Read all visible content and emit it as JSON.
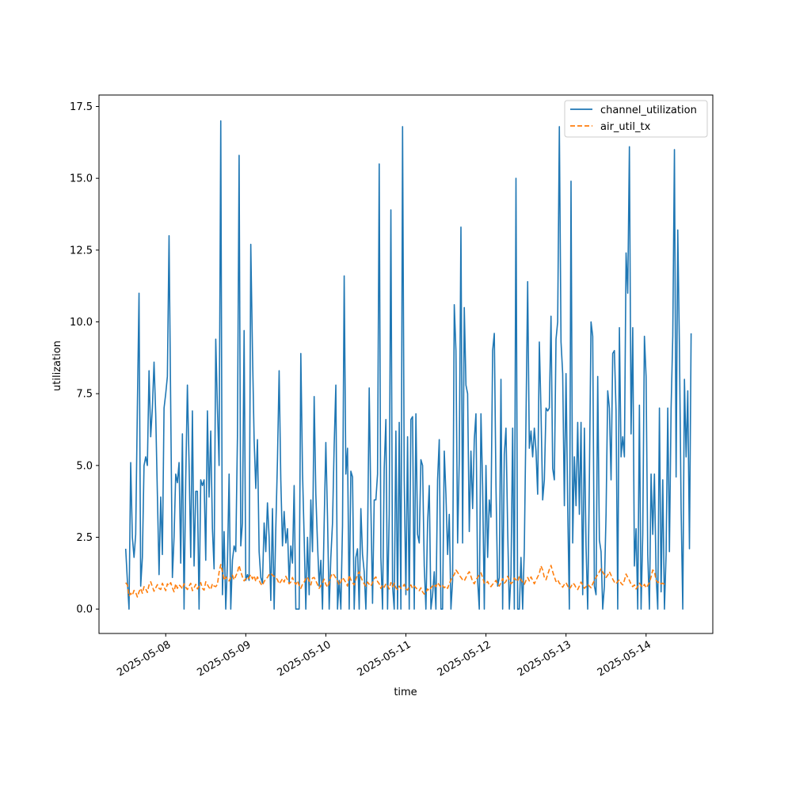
{
  "chart_data": {
    "type": "line",
    "title": "",
    "xlabel": "time",
    "ylabel": "utilization",
    "x_range": [
      "2025-05-07 12:00",
      "2025-05-14 12:00"
    ],
    "sample_interval_minutes": 30,
    "xlim": [
      "2025-05-07 04:00",
      "2025-05-14 20:00"
    ],
    "ylim": [
      -0.85,
      17.9
    ],
    "x_ticks": [
      "2025-05-08",
      "2025-05-09",
      "2025-05-10",
      "2025-05-11",
      "2025-05-12",
      "2025-05-13",
      "2025-05-14"
    ],
    "y_ticks": [
      "0.0",
      "2.5",
      "5.0",
      "7.5",
      "10.0",
      "12.5",
      "15.0",
      "17.5"
    ],
    "legend_position": "top-right",
    "grid": false,
    "series": [
      {
        "name": "channel_utilization",
        "color": "#1f77b4",
        "style": "solid",
        "values": [
          2.1,
          1.0,
          0.0,
          5.1,
          2.5,
          1.8,
          2.6,
          7.0,
          11.0,
          0.8,
          1.8,
          5.0,
          5.3,
          5.0,
          8.3,
          6.0,
          7.0,
          8.6,
          6.8,
          4.0,
          1.2,
          3.9,
          1.9,
          7.0,
          7.5,
          8.1,
          13.0,
          7.0,
          1.1,
          2.5,
          4.7,
          4.4,
          5.1,
          1.6,
          6.1,
          0.0,
          4.5,
          7.8,
          5.1,
          1.8,
          6.9,
          1.5,
          4.1,
          4.1,
          0.0,
          4.5,
          4.3,
          4.5,
          1.7,
          6.9,
          3.9,
          6.2,
          2.8,
          1.4,
          9.4,
          7.0,
          5.0,
          17.0,
          0.5,
          2.7,
          0.0,
          1.6,
          4.7,
          0.0,
          1.7,
          2.2,
          2.0,
          6.0,
          15.8,
          2.2,
          3.0,
          9.7,
          1.0,
          1.2,
          1.0,
          12.7,
          9.0,
          5.9,
          4.2,
          5.9,
          2.0,
          1.1,
          0.9,
          3.0,
          2.0,
          3.7,
          2.5,
          0.3,
          3.5,
          0.0,
          2.8,
          5.2,
          8.3,
          4.5,
          2.2,
          3.4,
          2.3,
          2.8,
          0.9,
          2.2,
          1.6,
          4.3,
          0.0,
          0.0,
          0.0,
          8.9,
          4.8,
          2.5,
          0.0,
          2.5,
          0.5,
          3.8,
          2.0,
          7.4,
          4.0,
          2.3,
          0.8,
          1.7,
          0.0,
          3.0,
          5.8,
          3.2,
          0.0,
          1.8,
          3.0,
          5.7,
          7.8,
          0.0,
          1.0,
          0.0,
          2.9,
          11.6,
          4.7,
          5.6,
          0.0,
          4.8,
          4.6,
          0.0,
          1.8,
          2.1,
          0.0,
          3.5,
          1.9,
          1.3,
          0.0,
          2.3,
          7.7,
          3.6,
          0.2,
          3.8,
          3.8,
          4.7,
          15.5,
          1.8,
          0.0,
          4.9,
          6.6,
          0.0,
          3.3,
          13.9,
          0.8,
          0.0,
          6.2,
          0.0,
          6.5,
          0.0,
          16.8,
          4.5,
          0.5,
          6.0,
          0.0,
          6.6,
          6.7,
          0.0,
          6.8,
          2.6,
          2.3,
          5.2,
          5.0,
          1.5,
          0.0,
          3.0,
          4.3,
          0.0,
          0.5,
          1.3,
          0.0,
          4.5,
          5.9,
          0.0,
          0.0,
          5.5,
          4.0,
          1.9,
          3.3,
          0.0,
          1.0,
          10.6,
          9.0,
          2.3,
          5.2,
          13.3,
          2.3,
          10.5,
          7.8,
          7.5,
          2.7,
          5.5,
          3.5,
          5.9,
          6.8,
          1.0,
          0.0,
          6.8,
          4.3,
          0.0,
          5.0,
          1.8,
          3.8,
          3.2,
          9.0,
          9.6,
          4.3,
          0.8,
          1.1,
          8.0,
          0.0,
          5.4,
          6.3,
          2.8,
          0.0,
          1.2,
          6.3,
          0.0,
          15.0,
          0.0,
          0.0,
          1.8,
          0.0,
          2.1,
          6.6,
          11.4,
          5.6,
          6.2,
          5.3,
          6.3,
          5.5,
          4.0,
          9.3,
          6.9,
          3.8,
          4.5,
          7.0,
          6.9,
          7.0,
          10.2,
          4.9,
          4.5,
          9.4,
          10.0,
          16.8,
          9.3,
          8.2,
          3.6,
          8.2,
          3.6,
          0.0,
          14.9,
          2.3,
          5.3,
          3.6,
          6.5,
          3.3,
          6.5,
          0.5,
          6.3,
          2.2,
          0.0,
          4.5,
          10.0,
          9.5,
          0.8,
          0.5,
          8.1,
          2.4,
          2.0,
          0.0,
          0.8,
          3.3,
          7.6,
          7.0,
          4.5,
          8.9,
          9.0,
          6.9,
          0.0,
          9.8,
          5.3,
          6.0,
          5.3,
          12.4,
          11.0,
          16.1,
          6.1,
          9.8,
          1.5,
          2.8,
          0.0,
          7.1,
          0.0,
          2.6,
          9.5,
          8.1,
          1.9,
          0.0,
          4.7,
          2.6,
          4.7,
          1.2,
          0.0,
          7.0,
          0.6,
          4.5,
          0.0,
          1.9,
          7.0,
          2.0,
          7.0,
          9.5,
          16.0,
          4.6,
          13.2,
          9.1,
          3.5,
          0.0,
          8.0,
          5.3,
          7.6,
          2.1,
          9.6
        ]
      },
      {
        "name": "air_util_tx",
        "color": "#ff7f0e",
        "style": "dashed",
        "values": [
          0.92,
          0.84,
          0.45,
          0.55,
          0.48,
          0.65,
          0.58,
          0.42,
          0.6,
          0.72,
          0.55,
          0.78,
          0.7,
          0.58,
          0.84,
          0.95,
          0.78,
          0.62,
          0.74,
          0.85,
          0.72,
          0.68,
          0.9,
          0.76,
          0.64,
          0.88,
          0.82,
          0.92,
          0.74,
          0.6,
          0.88,
          0.72,
          0.84,
          0.79,
          0.7,
          0.88,
          0.76,
          0.68,
          0.8,
          0.9,
          0.64,
          0.74,
          0.86,
          0.7,
          0.8,
          0.92,
          0.72,
          0.66,
          0.95,
          0.85,
          0.75,
          0.68,
          0.88,
          0.8,
          0.78,
          0.86,
          1.28,
          1.55,
          1.3,
          1.0,
          1.12,
          1.04,
          0.98,
          1.1,
          1.18,
          1.02,
          1.15,
          1.28,
          1.52,
          1.3,
          1.12,
          0.98,
          1.06,
          1.02,
          1.1,
          1.2,
          1.05,
          1.16,
          0.96,
          1.12,
          1.0,
          0.88,
          0.82,
          0.96,
          1.04,
          1.1,
          1.2,
          1.25,
          1.18,
          1.14,
          1.1,
          1.02,
          0.88,
          0.96,
          1.06,
          0.94,
          1.14,
          1.02,
          0.88,
          0.94,
          1.1,
          0.95,
          0.86,
          0.98,
          0.82,
          0.72,
          0.86,
          0.94,
          1.06,
          1.12,
          0.98,
          0.84,
          1.08,
          1.1,
          0.98,
          0.86,
          0.72,
          0.82,
          0.92,
          1.04,
          0.86,
          0.76,
          0.92,
          1.14,
          1.24,
          1.18,
          1.08,
          0.98,
          0.84,
          0.94,
          1.1,
          1.02,
          0.92,
          0.8,
          1.18,
          1.02,
          0.92,
          0.84,
          1.04,
          1.2,
          1.3,
          1.12,
          0.98,
          0.88,
          0.8,
          0.94,
          0.86,
          0.8,
          0.92,
          1.06,
          1.12,
          0.96,
          0.88,
          0.72,
          0.84,
          0.76,
          0.88,
          0.82,
          0.7,
          0.92,
          0.78,
          0.9,
          0.74,
          0.68,
          0.8,
          0.72,
          0.76,
          0.86,
          0.7,
          0.66,
          0.78,
          0.84,
          0.72,
          0.8,
          0.74,
          0.68,
          0.64,
          0.74,
          0.6,
          0.52,
          0.58,
          0.7,
          0.64,
          0.74,
          0.8,
          0.86,
          0.78,
          0.92,
          0.84,
          0.76,
          0.82,
          0.74,
          0.8,
          0.72,
          0.88,
          1.02,
          1.12,
          1.2,
          1.36,
          1.28,
          1.18,
          1.1,
          1.02,
          0.98,
          1.1,
          1.22,
          1.3,
          1.14,
          0.96,
          0.88,
          1.02,
          1.1,
          1.2,
          1.26,
          1.1,
          0.9,
          0.88,
          0.96,
          0.84,
          0.78,
          0.86,
          0.92,
          1.0,
          0.86,
          0.8,
          0.92,
          1.06,
          0.9,
          0.96,
          1.14,
          1.02,
          0.88,
          0.94,
          1.08,
          1.02,
          0.96,
          1.14,
          1.02,
          0.94,
          0.86,
          1.0,
          1.1,
          0.98,
          1.12,
          1.0,
          0.88,
          1.0,
          1.12,
          1.24,
          1.5,
          1.36,
          1.1,
          1.02,
          1.2,
          1.38,
          1.52,
          1.3,
          1.12,
          0.96,
          1.02,
          0.9,
          0.84,
          0.76,
          0.86,
          0.92,
          0.8,
          0.7,
          0.78,
          0.9,
          0.86,
          0.74,
          0.68,
          0.8,
          0.94,
          0.84,
          0.72,
          0.78,
          0.86,
          0.8,
          0.74,
          0.88,
          1.0,
          1.1,
          1.2,
          1.3,
          1.4,
          1.28,
          1.2,
          1.1,
          1.18,
          1.3,
          1.18,
          1.04,
          0.94,
          0.88,
          0.96,
          1.02,
          0.9,
          0.84,
          1.0,
          1.22,
          1.1,
          1.0,
          0.86,
          0.78,
          0.84,
          0.7,
          0.78,
          0.9,
          0.82,
          0.76,
          0.86,
          0.74,
          0.82,
          0.92,
          1.12,
          1.36,
          1.3,
          1.0,
          0.92,
          0.96,
          0.88,
          0.9,
          0.86
        ]
      }
    ]
  }
}
